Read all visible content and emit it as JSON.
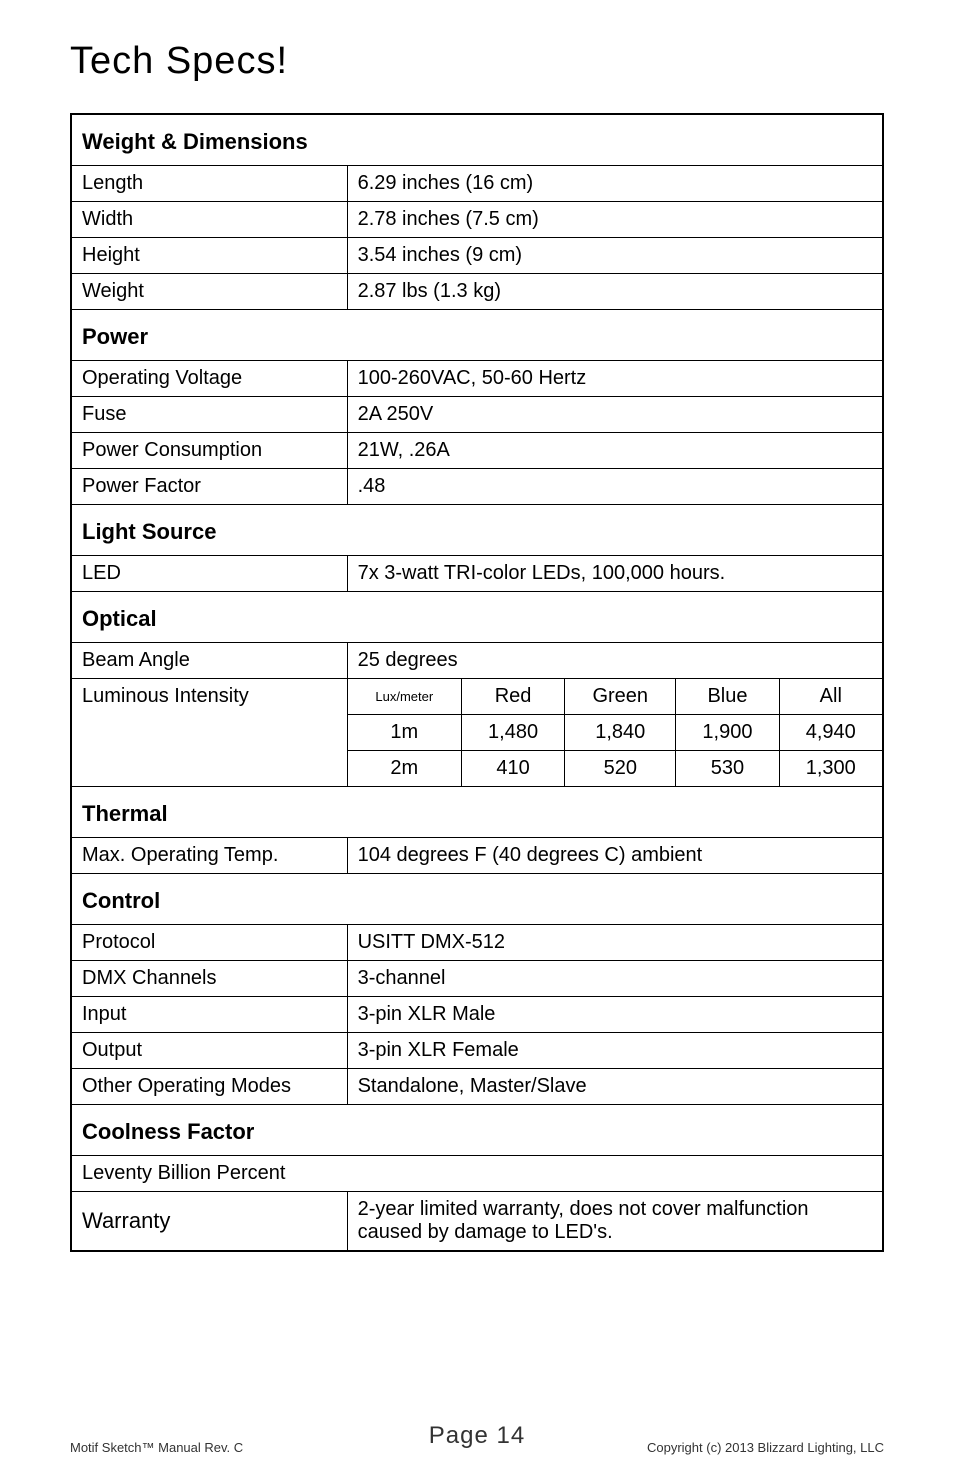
{
  "title": "Tech Specs!",
  "sections": {
    "weight_dimensions": {
      "header": "Weight & Dimensions",
      "rows": [
        {
          "label": "Length",
          "value": "6.29 inches (16 cm)"
        },
        {
          "label": "Width",
          "value": "2.78 inches (7.5 cm)"
        },
        {
          "label": "Height",
          "value": "3.54 inches (9 cm)"
        },
        {
          "label": "Weight",
          "value": "2.87 lbs (1.3 kg)"
        }
      ]
    },
    "power": {
      "header": "Power",
      "rows": [
        {
          "label": "Operating Voltage",
          "value": "100-260VAC, 50-60 Hertz"
        },
        {
          "label": "Fuse",
          "value": "2A 250V"
        },
        {
          "label": "Power Consumption",
          "value": "21W, .26A"
        },
        {
          "label": "Power Factor",
          "value": ".48"
        }
      ]
    },
    "light_source": {
      "header": "Light Source",
      "rows": [
        {
          "label": "LED",
          "value": "7x 3-watt TRI-color LEDs, 100,000 hours."
        }
      ]
    },
    "optical": {
      "header": "Optical",
      "beam_angle": {
        "label": "Beam Angle",
        "value": "25 degrees"
      },
      "luminous": {
        "label": "Luminous Intensity",
        "header_row": [
          "Lux/meter",
          "Red",
          "Green",
          "Blue",
          "All"
        ],
        "rows": [
          [
            "1m",
            "1,480",
            "1,840",
            "1,900",
            "4,940"
          ],
          [
            "2m",
            "410",
            "520",
            "530",
            "1,300"
          ]
        ]
      }
    },
    "thermal": {
      "header": "Thermal",
      "rows": [
        {
          "label": "Max. Operating Temp.",
          "value": "104 degrees F (40 degrees C) ambient"
        }
      ]
    },
    "control": {
      "header": "Control",
      "rows": [
        {
          "label": "Protocol",
          "value": "USITT DMX-512"
        },
        {
          "label": "DMX Channels",
          "value": "3-channel"
        },
        {
          "label": "Input",
          "value": "3-pin XLR Male"
        },
        {
          "label": "Output",
          "value": "3-pin XLR Female"
        },
        {
          "label": "Other Operating Modes",
          "value": "Standalone, Master/Slave"
        }
      ]
    },
    "coolness": {
      "header": "Coolness Factor",
      "row": "Leventy Billion Percent"
    },
    "warranty": {
      "label": "Warranty",
      "value": "2-year limited warranty, does not cover malfunction caused by damage to LED's."
    }
  },
  "footer": {
    "page_label": "Page 14",
    "left": "Motif Sketch™ Manual Rev. C",
    "right": "Copyright (c) 2013 Blizzard Lighting, LLC"
  }
}
